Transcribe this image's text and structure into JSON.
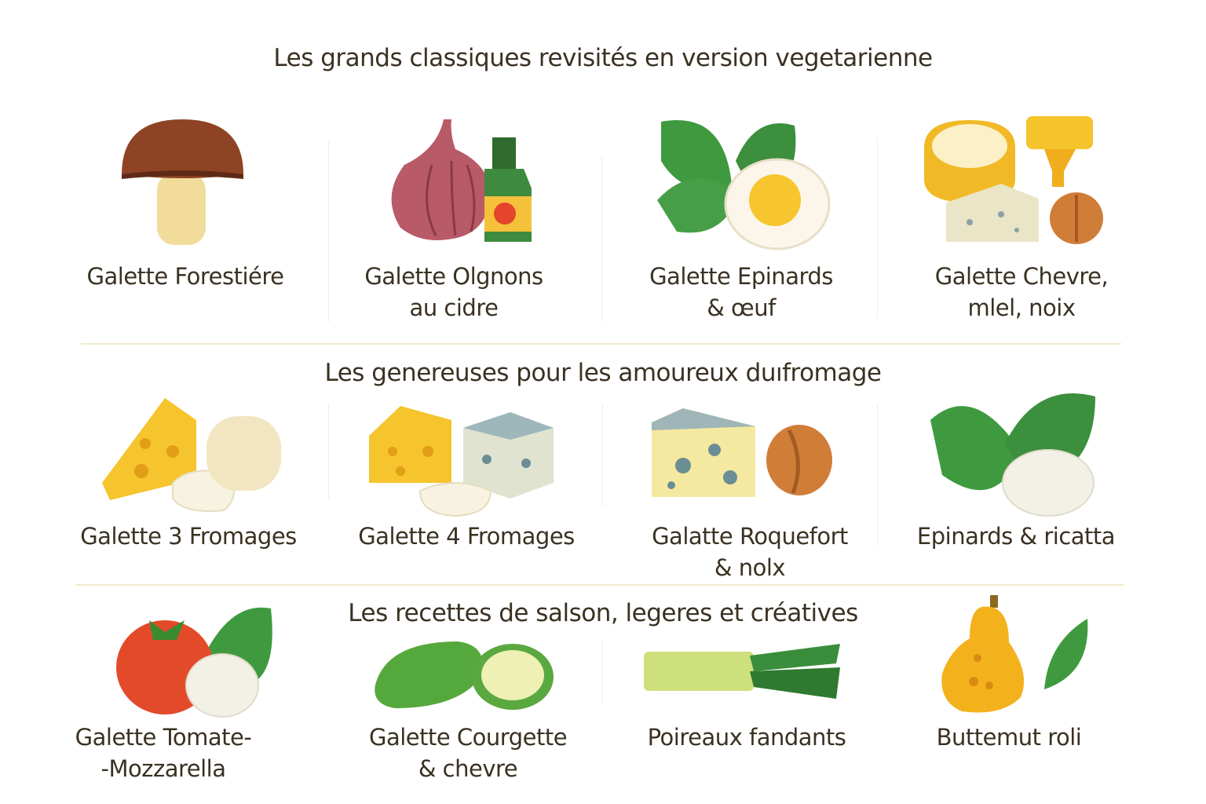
{
  "sections": [
    {
      "title": "Les grands classiques revisités en version vegetarienne",
      "items": [
        {
          "label": "Galette Forestiére",
          "icon": "mushroom-icon"
        },
        {
          "label": "Galette Olgnons\nau cidre",
          "icon": "onion-cider-icon"
        },
        {
          "label": "Galette Epinards\n& œuf",
          "icon": "spinach-egg-icon"
        },
        {
          "label": "Galette Chevre,\nmlel, noix",
          "icon": "goat-cheese-honey-walnut-icon"
        }
      ]
    },
    {
      "title": "Les genereuses pour les amoureux duıfromage",
      "items": [
        {
          "label": "Galette 3 Fromages",
          "icon": "three-cheese-icon"
        },
        {
          "label": "Galette 4 Fromages",
          "icon": "four-cheese-icon"
        },
        {
          "label": "Galatte Roquefort\n& nolx",
          "icon": "roquefort-walnut-icon"
        },
        {
          "label": "Epinards & ricatta",
          "icon": "spinach-ricotta-icon"
        }
      ]
    },
    {
      "title": "Les recettes de salson, legeres et créatives",
      "items": [
        {
          "label": "Galette Tomate-\n-Mozzarella",
          "icon": "tomato-mozzarella-icon"
        },
        {
          "label": "Galette Courgette\n& chevre",
          "icon": "zucchini-icon"
        },
        {
          "label": "Poireaux fandants",
          "icon": "leek-icon"
        },
        {
          "label": "Buttemut roli",
          "icon": "butternut-icon"
        }
      ]
    }
  ],
  "colors": {
    "text": "#3a3122",
    "divider": "#f3ebcc",
    "green": "#3f9a3f",
    "yellow": "#f5c52a"
  }
}
